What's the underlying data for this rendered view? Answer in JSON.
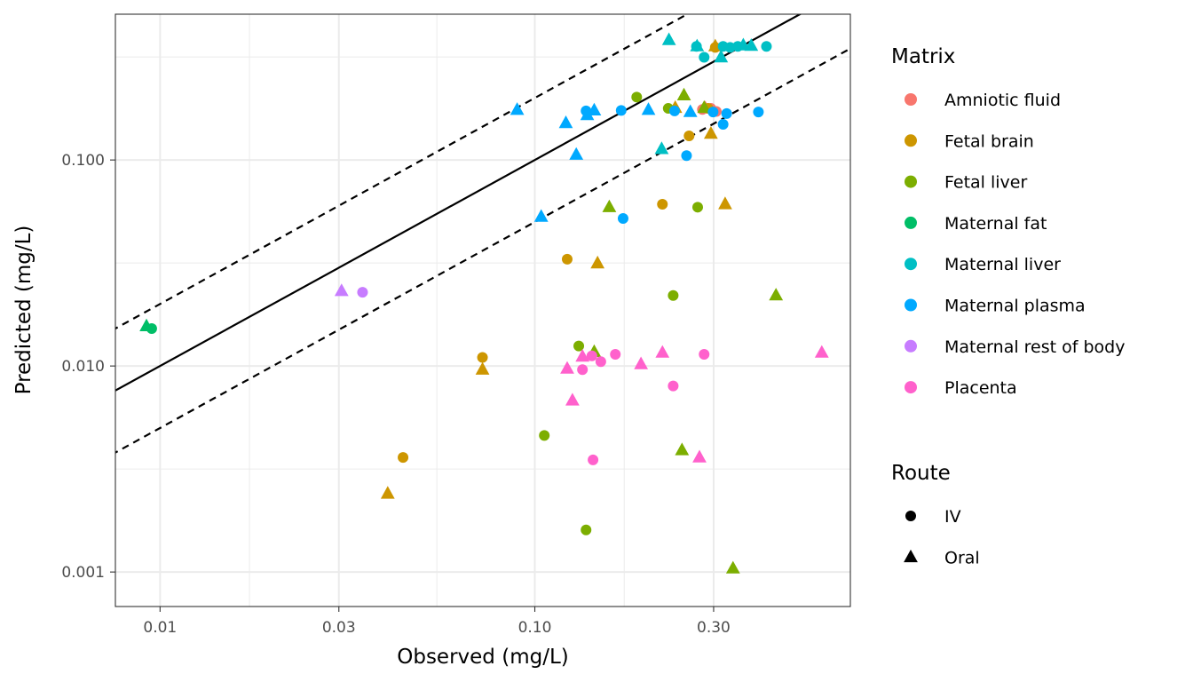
{
  "chart_data": {
    "type": "scatter",
    "xlabel": "Observed (mg/L)",
    "ylabel": "Predicted (mg/L)",
    "x_scale": "log10",
    "y_scale": "log10",
    "xlim": [
      0.0076,
      0.695
    ],
    "ylim": [
      0.00068,
      0.51
    ],
    "x_ticks": [
      {
        "value": 0.01,
        "label": "0.01"
      },
      {
        "value": 0.03,
        "label": "0.03"
      },
      {
        "value": 0.1,
        "label": "0.10"
      },
      {
        "value": 0.3,
        "label": "0.30"
      }
    ],
    "y_ticks": [
      {
        "value": 0.001,
        "label": "0.001"
      },
      {
        "value": 0.01,
        "label": "0.010"
      },
      {
        "value": 0.1,
        "label": "0.100"
      }
    ],
    "grid": true,
    "reference_lines": [
      {
        "name": "identity",
        "factor": 1,
        "style": "solid"
      },
      {
        "name": "2-fold above",
        "factor": 2,
        "style": "dashed"
      },
      {
        "name": "2-fold below",
        "factor": 0.5,
        "style": "dashed"
      }
    ],
    "legend_position": "right",
    "legends": {
      "color": {
        "title": "Matrix",
        "entries": [
          {
            "label": "Amniotic fluid",
            "color": "#F8766D"
          },
          {
            "label": "Fetal brain",
            "color": "#CD9600"
          },
          {
            "label": "Fetal liver",
            "color": "#7CAE00"
          },
          {
            "label": "Maternal fat",
            "color": "#00BE67"
          },
          {
            "label": "Maternal liver",
            "color": "#00BFC4"
          },
          {
            "label": "Maternal plasma",
            "color": "#00A9FF"
          },
          {
            "label": "Maternal rest of body",
            "color": "#C77CFF"
          },
          {
            "label": "Placenta",
            "color": "#FF61CC"
          }
        ]
      },
      "shape": {
        "title": "Route",
        "entries": [
          {
            "label": "IV",
            "shape": "circle"
          },
          {
            "label": "Oral",
            "shape": "triangle"
          }
        ]
      }
    },
    "series": [
      {
        "name": "Amniotic fluid",
        "points": [
          {
            "x": 0.28,
            "y": 0.176,
            "route": "IV"
          },
          {
            "x": 0.295,
            "y": 0.178,
            "route": "IV"
          },
          {
            "x": 0.305,
            "y": 0.172,
            "route": "IV"
          },
          {
            "x": 0.285,
            "y": 0.178,
            "route": "Oral"
          }
        ]
      },
      {
        "name": "Fetal brain",
        "points": [
          {
            "x": 0.303,
            "y": 0.352,
            "route": "IV"
          },
          {
            "x": 0.29,
            "y": 0.178,
            "route": "IV"
          },
          {
            "x": 0.258,
            "y": 0.131,
            "route": "IV"
          },
          {
            "x": 0.219,
            "y": 0.061,
            "route": "IV"
          },
          {
            "x": 0.122,
            "y": 0.033,
            "route": "IV"
          },
          {
            "x": 0.0725,
            "y": 0.011,
            "route": "IV"
          },
          {
            "x": 0.0445,
            "y": 0.0036,
            "route": "IV"
          },
          {
            "x": 0.303,
            "y": 0.356,
            "route": "Oral"
          },
          {
            "x": 0.237,
            "y": 0.179,
            "route": "Oral"
          },
          {
            "x": 0.295,
            "y": 0.134,
            "route": "Oral"
          },
          {
            "x": 0.322,
            "y": 0.061,
            "route": "Oral"
          },
          {
            "x": 0.147,
            "y": 0.0315,
            "route": "Oral"
          },
          {
            "x": 0.0725,
            "y": 0.0096,
            "route": "Oral"
          },
          {
            "x": 0.0405,
            "y": 0.0024,
            "route": "Oral"
          }
        ]
      },
      {
        "name": "Fetal liver",
        "points": [
          {
            "x": 0.187,
            "y": 0.202,
            "route": "IV"
          },
          {
            "x": 0.227,
            "y": 0.178,
            "route": "IV"
          },
          {
            "x": 0.272,
            "y": 0.059,
            "route": "IV"
          },
          {
            "x": 0.234,
            "y": 0.022,
            "route": "IV"
          },
          {
            "x": 0.131,
            "y": 0.0125,
            "route": "IV"
          },
          {
            "x": 0.106,
            "y": 0.0046,
            "route": "IV"
          },
          {
            "x": 0.137,
            "y": 0.0016,
            "route": "IV"
          },
          {
            "x": 0.25,
            "y": 0.206,
            "route": "Oral"
          },
          {
            "x": 0.283,
            "y": 0.179,
            "route": "Oral"
          },
          {
            "x": 0.158,
            "y": 0.059,
            "route": "Oral"
          },
          {
            "x": 0.44,
            "y": 0.022,
            "route": "Oral"
          },
          {
            "x": 0.144,
            "y": 0.0117,
            "route": "Oral"
          },
          {
            "x": 0.247,
            "y": 0.0039,
            "route": "Oral"
          },
          {
            "x": 0.338,
            "y": 0.00104,
            "route": "Oral"
          }
        ]
      },
      {
        "name": "Maternal fat",
        "points": [
          {
            "x": 0.0095,
            "y": 0.0152,
            "route": "IV"
          },
          {
            "x": 0.0092,
            "y": 0.0156,
            "route": "Oral"
          }
        ]
      },
      {
        "name": "Maternal liver",
        "points": [
          {
            "x": 0.283,
            "y": 0.315,
            "route": "IV"
          },
          {
            "x": 0.318,
            "y": 0.356,
            "route": "IV"
          },
          {
            "x": 0.332,
            "y": 0.352,
            "route": "IV"
          },
          {
            "x": 0.348,
            "y": 0.356,
            "route": "IV"
          },
          {
            "x": 0.27,
            "y": 0.356,
            "route": "IV"
          },
          {
            "x": 0.415,
            "y": 0.356,
            "route": "IV"
          },
          {
            "x": 0.228,
            "y": 0.382,
            "route": "Oral"
          },
          {
            "x": 0.271,
            "y": 0.356,
            "route": "Oral"
          },
          {
            "x": 0.314,
            "y": 0.315,
            "route": "Oral"
          },
          {
            "x": 0.36,
            "y": 0.36,
            "route": "Oral"
          },
          {
            "x": 0.378,
            "y": 0.358,
            "route": "Oral"
          },
          {
            "x": 0.218,
            "y": 0.113,
            "route": "Oral"
          }
        ]
      },
      {
        "name": "Maternal plasma",
        "points": [
          {
            "x": 0.137,
            "y": 0.173,
            "route": "IV"
          },
          {
            "x": 0.17,
            "y": 0.174,
            "route": "IV"
          },
          {
            "x": 0.236,
            "y": 0.173,
            "route": "IV"
          },
          {
            "x": 0.299,
            "y": 0.171,
            "route": "IV"
          },
          {
            "x": 0.325,
            "y": 0.168,
            "route": "IV"
          },
          {
            "x": 0.395,
            "y": 0.171,
            "route": "IV"
          },
          {
            "x": 0.318,
            "y": 0.149,
            "route": "IV"
          },
          {
            "x": 0.254,
            "y": 0.105,
            "route": "IV"
          },
          {
            "x": 0.172,
            "y": 0.052,
            "route": "IV"
          },
          {
            "x": 0.0897,
            "y": 0.175,
            "route": "Oral"
          },
          {
            "x": 0.121,
            "y": 0.151,
            "route": "Oral"
          },
          {
            "x": 0.138,
            "y": 0.165,
            "route": "Oral"
          },
          {
            "x": 0.144,
            "y": 0.174,
            "route": "Oral"
          },
          {
            "x": 0.201,
            "y": 0.175,
            "route": "Oral"
          },
          {
            "x": 0.26,
            "y": 0.171,
            "route": "Oral"
          },
          {
            "x": 0.129,
            "y": 0.106,
            "route": "Oral"
          },
          {
            "x": 0.104,
            "y": 0.053,
            "route": "Oral"
          }
        ]
      },
      {
        "name": "Maternal rest of body",
        "points": [
          {
            "x": 0.0347,
            "y": 0.0228,
            "route": "IV"
          },
          {
            "x": 0.0305,
            "y": 0.0231,
            "route": "Oral"
          }
        ]
      },
      {
        "name": "Placenta",
        "points": [
          {
            "x": 0.142,
            "y": 0.0112,
            "route": "IV"
          },
          {
            "x": 0.15,
            "y": 0.0105,
            "route": "IV"
          },
          {
            "x": 0.164,
            "y": 0.0114,
            "route": "IV"
          },
          {
            "x": 0.134,
            "y": 0.0096,
            "route": "IV"
          },
          {
            "x": 0.283,
            "y": 0.0114,
            "route": "IV"
          },
          {
            "x": 0.234,
            "y": 0.008,
            "route": "IV"
          },
          {
            "x": 0.143,
            "y": 0.0035,
            "route": "IV"
          },
          {
            "x": 0.134,
            "y": 0.0111,
            "route": "Oral"
          },
          {
            "x": 0.122,
            "y": 0.0097,
            "route": "Oral"
          },
          {
            "x": 0.126,
            "y": 0.0068,
            "route": "Oral"
          },
          {
            "x": 0.192,
            "y": 0.0102,
            "route": "Oral"
          },
          {
            "x": 0.219,
            "y": 0.0116,
            "route": "Oral"
          },
          {
            "x": 0.275,
            "y": 0.0036,
            "route": "Oral"
          },
          {
            "x": 0.583,
            "y": 0.0116,
            "route": "Oral"
          }
        ]
      }
    ]
  }
}
